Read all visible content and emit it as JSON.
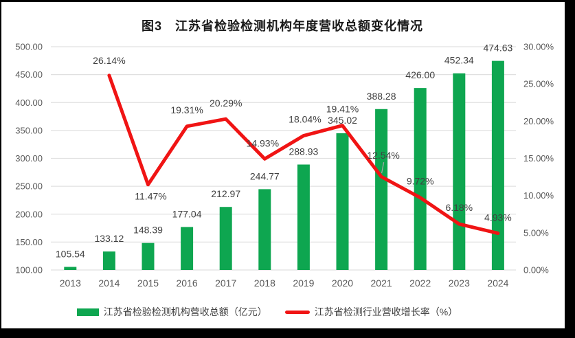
{
  "title": "图3　江苏省检验检测机构年度营收总额变化情况",
  "colors": {
    "bar": "#0EA650",
    "line": "#F01414",
    "grid": "#E0E0E0",
    "tick_text": "#595959",
    "data_label_text": "#404040",
    "leader_line": "#A6A6A6",
    "title_text": "#1A1A1A",
    "canvas_bg": "#FFFFFF",
    "frame_bg": "#000000"
  },
  "legend": [
    {
      "label": "江苏省检验检测机构营收总额（亿元）",
      "marker": "bar-swatch"
    },
    {
      "label": "江苏省检测行业营收增长率（%）",
      "marker": "line-swatch"
    }
  ],
  "chart_data": {
    "type": "combo (bar + line)",
    "categories": [
      "2013",
      "2014",
      "2015",
      "2016",
      "2017",
      "2018",
      "2019",
      "2020",
      "2021",
      "2022",
      "2023",
      "2024"
    ],
    "series": [
      {
        "name": "江苏省检验检测机构营收总额（亿元）",
        "type": "bar",
        "axis": "left",
        "values": [
          105.54,
          133.12,
          148.39,
          177.04,
          212.97,
          244.77,
          288.93,
          345.02,
          388.28,
          426.0,
          452.34,
          474.63
        ],
        "data_labels": [
          "105.54",
          "133.12",
          "148.39",
          "177.04",
          "212.97",
          "244.77",
          "288.93",
          "345.02",
          "388.28",
          "426.00",
          "452.34",
          "474.63"
        ]
      },
      {
        "name": "江苏省检测行业营收增长率（%）",
        "type": "line",
        "axis": "right",
        "values": [
          null,
          26.14,
          11.47,
          19.31,
          20.29,
          14.93,
          18.04,
          19.41,
          12.54,
          9.72,
          6.18,
          4.93
        ],
        "data_labels": [
          null,
          "26.14%",
          "11.47%",
          "19.31%",
          "20.29%",
          "14.93%",
          "18.04%",
          "19.41%",
          "12.54%",
          "9.72%",
          "6.18%",
          "4.93%"
        ]
      }
    ],
    "left_axis": {
      "min": 100,
      "max": 500,
      "step": 50,
      "tick_labels": [
        "100.00",
        "150.00",
        "200.00",
        "250.00",
        "300.00",
        "350.00",
        "400.00",
        "450.00",
        "500.00"
      ]
    },
    "right_axis": {
      "min": 0,
      "max": 30,
      "step": 5,
      "tick_labels": [
        "0.00%",
        "5.00%",
        "10.00%",
        "15.00%",
        "20.00%",
        "25.00%",
        "30.00%"
      ]
    },
    "grid": true,
    "legend_position": "bottom"
  }
}
